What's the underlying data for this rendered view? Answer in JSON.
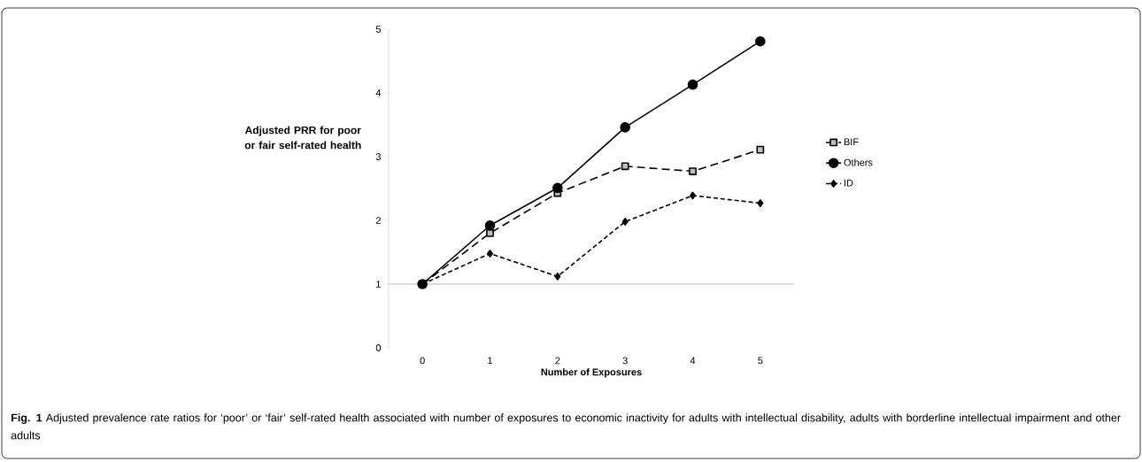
{
  "chart_data": {
    "type": "line",
    "xlabel": "Number of Exposures",
    "ylabel": "Adjusted PRR for poor or fair self-rated health",
    "categories": [
      "0",
      "1",
      "2",
      "3",
      "4",
      "5"
    ],
    "series": [
      {
        "name": "BIF",
        "color": "#000000",
        "marker": "square",
        "line_style": "dashed",
        "values": [
          1.0,
          1.8,
          2.43,
          2.85,
          2.77,
          3.11
        ]
      },
      {
        "name": "Others",
        "color": "#000000",
        "marker": "circle",
        "line_style": "solid",
        "values": [
          1.0,
          1.92,
          2.51,
          3.46,
          4.13,
          4.81
        ]
      },
      {
        "name": "ID",
        "color": "#000000",
        "marker": "diamond",
        "line_style": "dotted",
        "values": [
          1.0,
          1.48,
          1.12,
          1.98,
          2.39,
          2.27
        ]
      }
    ],
    "ylim": [
      0,
      5
    ],
    "yticks": [
      0,
      1,
      2,
      3,
      4,
      5
    ],
    "ref_lines": [
      {
        "axis": "y",
        "value": 1,
        "color": "#a6a6a6"
      }
    ],
    "grid": false,
    "legend": "right",
    "annotations": [
      "**Fig. 1** Adjusted prevalence rate ratios for ‘poor’ or ‘fair’ self-rated health associated with number of exposures to economic inactivity for adults with intellectual disability, adults with borderline intellectual impairment and other adults"
    ]
  }
}
